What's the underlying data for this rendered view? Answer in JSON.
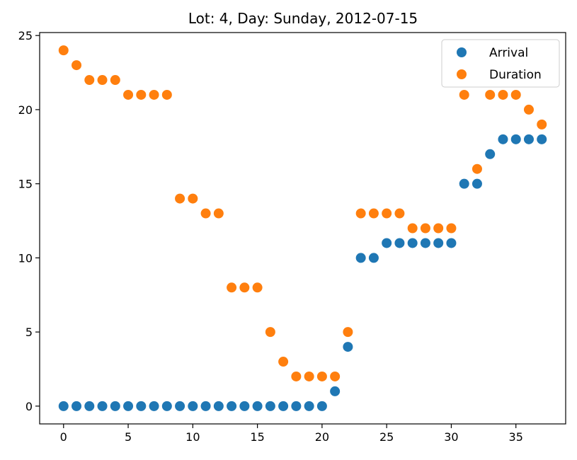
{
  "chart_data": {
    "type": "scatter",
    "title": "Lot: 4, Day: Sunday, 2012-07-15",
    "xlabel": "",
    "ylabel": "",
    "xlim": [
      -1.85,
      38.85
    ],
    "ylim": [
      -1.2,
      25.2
    ],
    "xticks": [
      0,
      5,
      10,
      15,
      20,
      25,
      30,
      35
    ],
    "yticks": [
      0,
      5,
      10,
      15,
      20,
      25
    ],
    "grid": false,
    "legend_position": "top-right",
    "series": [
      {
        "name": "Arrival",
        "color": "#1f77b4",
        "x": [
          0,
          1,
          2,
          3,
          4,
          5,
          6,
          7,
          8,
          9,
          10,
          11,
          12,
          13,
          14,
          15,
          16,
          17,
          18,
          19,
          20,
          21,
          22,
          23,
          24,
          25,
          26,
          27,
          28,
          29,
          30,
          31,
          32,
          33,
          34,
          35,
          36,
          37
        ],
        "y": [
          0,
          0,
          0,
          0,
          0,
          0,
          0,
          0,
          0,
          0,
          0,
          0,
          0,
          0,
          0,
          0,
          0,
          0,
          0,
          0,
          0,
          1,
          4,
          10,
          10,
          11,
          11,
          11,
          11,
          11,
          11,
          15,
          15,
          17,
          18,
          18,
          18,
          18
        ]
      },
      {
        "name": "Duration",
        "color": "#ff7f0e",
        "x": [
          0,
          1,
          2,
          3,
          4,
          5,
          6,
          7,
          8,
          9,
          10,
          11,
          12,
          13,
          14,
          15,
          16,
          17,
          18,
          19,
          20,
          21,
          22,
          23,
          24,
          25,
          26,
          27,
          28,
          29,
          30,
          31,
          32,
          33,
          34,
          35,
          36,
          37
        ],
        "y": [
          24,
          23,
          22,
          22,
          22,
          21,
          21,
          21,
          21,
          14,
          14,
          13,
          13,
          8,
          8,
          8,
          5,
          3,
          2,
          2,
          2,
          2,
          5,
          13,
          13,
          13,
          13,
          12,
          12,
          12,
          12,
          21,
          16,
          21,
          21,
          21,
          20,
          19
        ]
      }
    ]
  }
}
